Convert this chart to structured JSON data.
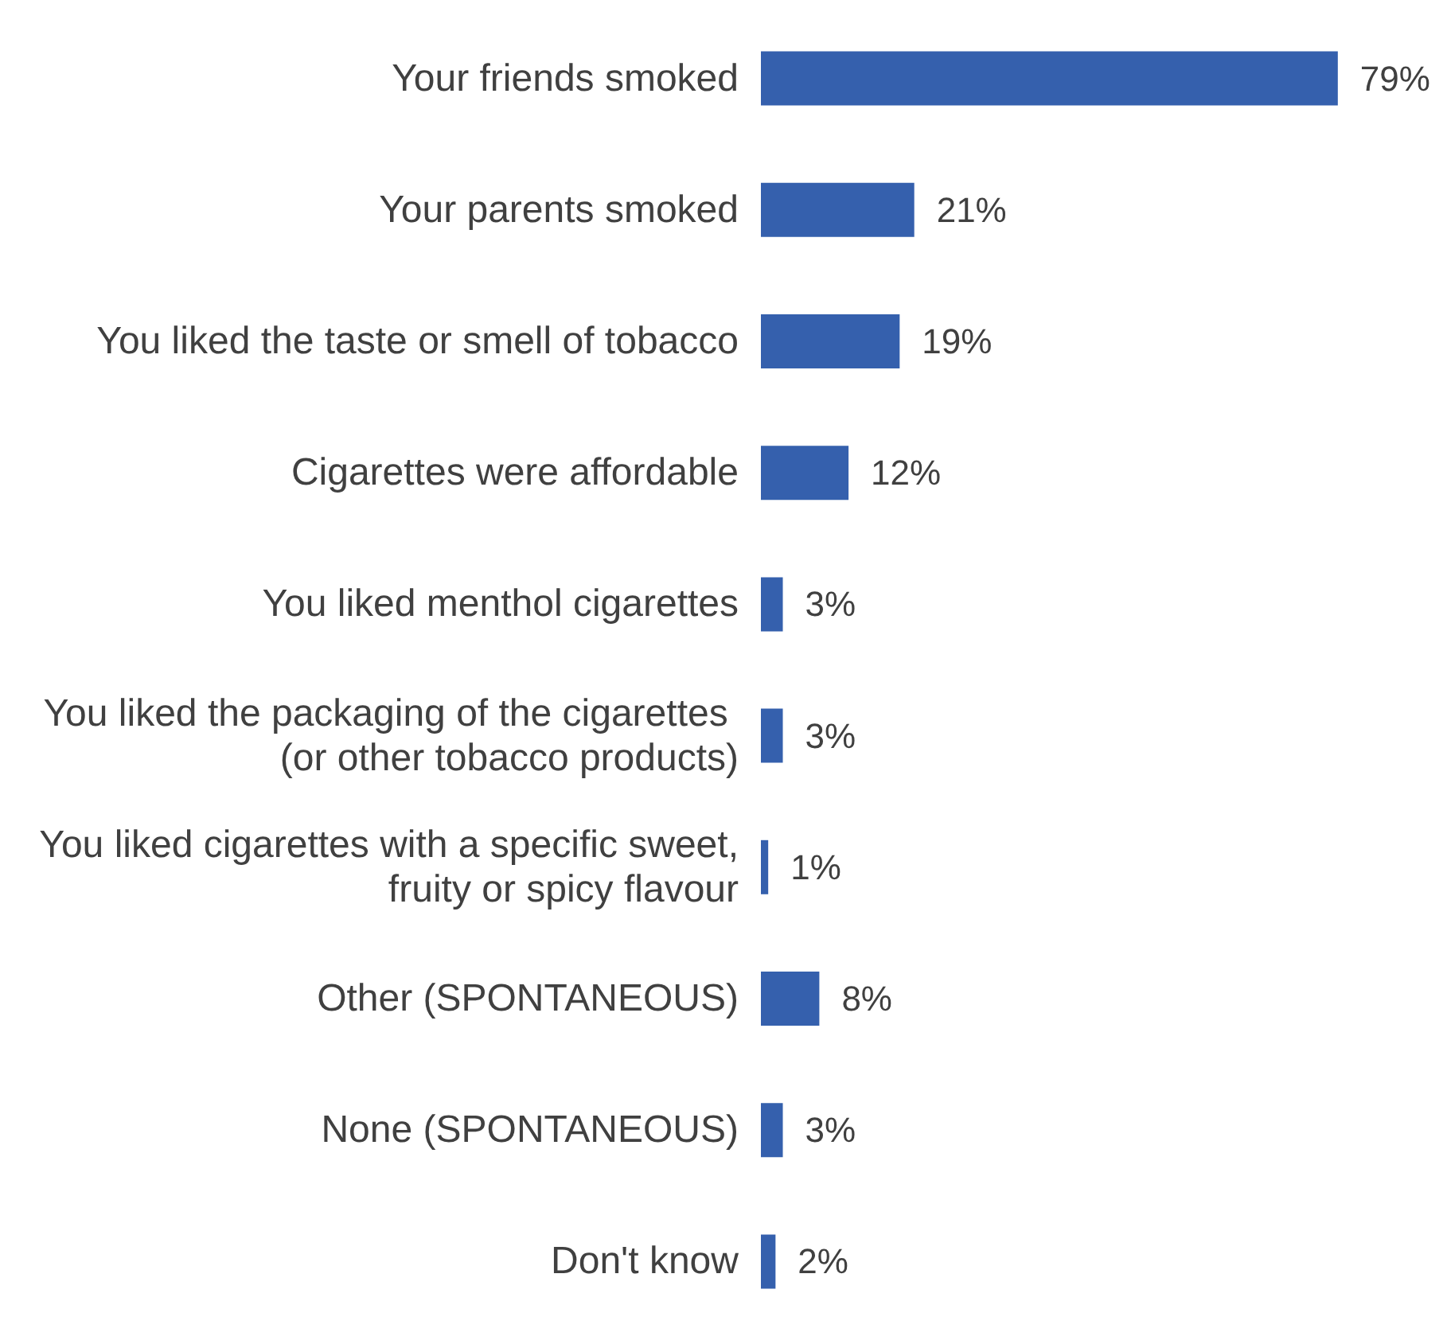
{
  "chart_data": {
    "type": "bar",
    "orientation": "horizontal",
    "categories": [
      "Your friends smoked",
      "Your parents smoked",
      "You liked the taste or smell of tobacco",
      "Cigarettes were affordable",
      "You liked menthol cigarettes",
      "You liked the packaging of the cigarettes (or other tobacco products)",
      "You liked cigarettes with a specific sweet, fruity or spicy flavour",
      "Other (SPONTANEOUS)",
      "None (SPONTANEOUS)",
      "Don't know"
    ],
    "values": [
      79,
      21,
      19,
      12,
      3,
      3,
      1,
      8,
      3,
      2
    ],
    "color": "#3560ad",
    "value_labels": [
      "79%",
      "21%",
      "19%",
      "12%",
      "3%",
      "3%",
      "1%",
      "8%",
      "3%",
      "2%"
    ],
    "tick_labels": "y"
  }
}
